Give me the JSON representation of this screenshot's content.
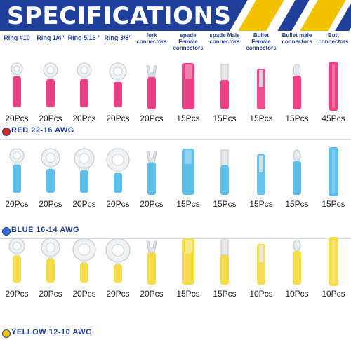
{
  "banner": {
    "title": "SPECIFICATIONS",
    "colors": {
      "blue": "#1f3f9a",
      "yellow": "#f2c300"
    }
  },
  "headers": [
    {
      "lines": [
        "Ring #10"
      ],
      "big": true
    },
    {
      "lines": [
        "Ring 1/4\""
      ],
      "big": true
    },
    {
      "lines": [
        "Ring 5/16 \""
      ],
      "big": true
    },
    {
      "lines": [
        "Ring 3/8\""
      ],
      "big": true
    },
    {
      "lines": [
        "fork",
        "connectors"
      ],
      "big": false
    },
    {
      "lines": [
        "spade Female",
        "connectors"
      ],
      "big": false
    },
    {
      "lines": [
        "spade Male",
        "connectors"
      ],
      "big": false
    },
    {
      "lines": [
        "Bullet Female",
        "connectors"
      ],
      "big": false
    },
    {
      "lines": [
        "Bullet male",
        "connectors"
      ],
      "big": false
    },
    {
      "lines": [
        "Butt",
        "connectors"
      ],
      "big": false
    }
  ],
  "groups": [
    {
      "label": "RED  22-16 AWG",
      "color": "#e8307a",
      "ring_color": "#ffffff",
      "dot": "#d22a2a",
      "qtys": [
        "20Pcs",
        "20Pcs",
        "20Pcs",
        "20Pcs",
        "20Pcs",
        "15Pcs",
        "15Pcs",
        "15Pcs",
        "15Pcs",
        "45Pcs"
      ]
    },
    {
      "label": "BLUE  16-14 AWG",
      "color": "#4fb8e8",
      "ring_color": "#ffffff",
      "dot": "#2f6fd0",
      "qtys": [
        "20Pcs",
        "20Pcs",
        "20Pcs",
        "20Pcs",
        "20Pcs",
        "15Pcs",
        "15Pcs",
        "15Pcs",
        "15Pcs",
        "15Pcs"
      ]
    },
    {
      "label": "YELLOW  12-10 AWG",
      "color": "#f5d93a",
      "ring_color": "#ffffff",
      "dot": "#f2c300",
      "qtys": [
        "20Pcs",
        "20Pcs",
        "20Pcs",
        "20Pcs",
        "20Pcs",
        "15Pcs",
        "15Pcs",
        "10Pcs",
        "10Pcs",
        "10Pcs"
      ]
    }
  ]
}
